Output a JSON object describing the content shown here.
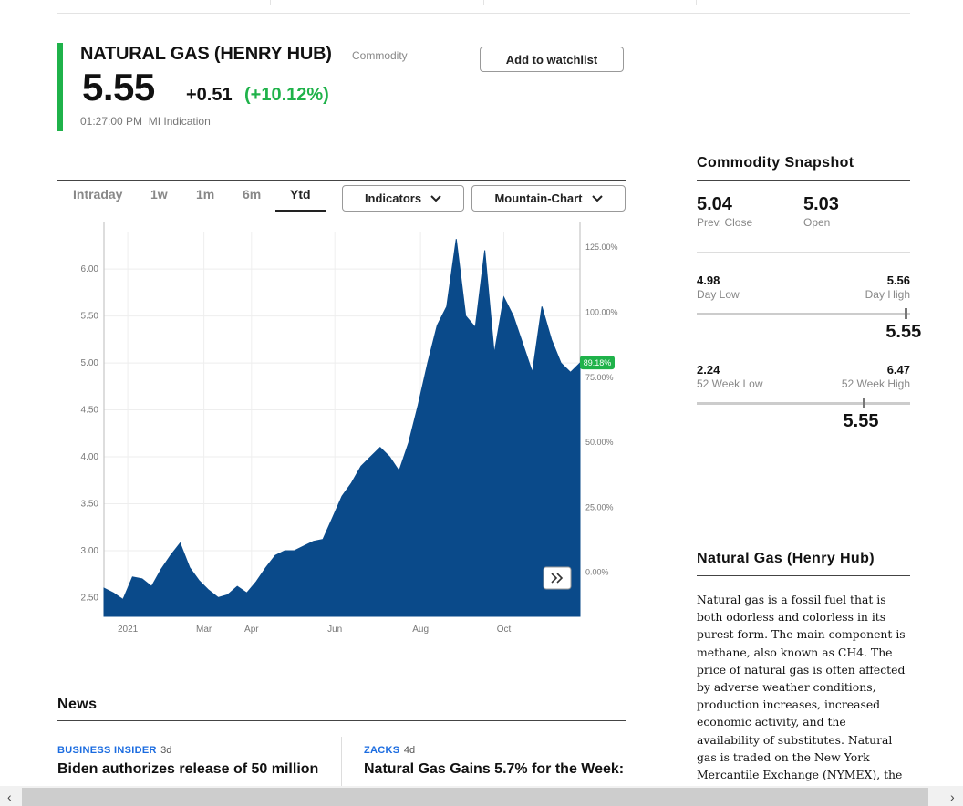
{
  "header": {
    "title": "NATURAL GAS (HENRY HUB)",
    "type_label": "Commodity",
    "price": "5.55",
    "change": "+0.51",
    "change_pct": "(+10.12%)",
    "quote_time": "01:27:00 PM",
    "quote_source": "MI Indication",
    "watchlist_button": "Add to watchlist"
  },
  "tabs": [
    {
      "label": "Intraday"
    },
    {
      "label": "1w"
    },
    {
      "label": "1m"
    },
    {
      "label": "6m"
    },
    {
      "label": "Ytd",
      "active": true
    }
  ],
  "dropdowns": {
    "indicators": "Indicators",
    "chart_type": "Mountain-Chart"
  },
  "chart_data": {
    "type": "area",
    "y_left_ticks": [
      "6.00",
      "5.50",
      "5.00",
      "4.50",
      "4.00",
      "3.50",
      "3.00",
      "2.50"
    ],
    "y_right_ticks": [
      "125.00%",
      "100.00%",
      "75.00%",
      "50.00%",
      "25.00%",
      "0.00%"
    ],
    "x_ticks": [
      "2021",
      "Mar",
      "Apr",
      "Jun",
      "Aug",
      "Oct"
    ],
    "current_badge": "89.18%",
    "ylim": [
      2.3,
      6.4
    ],
    "color": "#0a4a8a",
    "badge_color": "#1fb24a",
    "x": [
      0,
      2,
      4,
      6,
      8,
      10,
      12,
      14,
      16,
      18,
      20,
      22,
      24,
      26,
      28,
      30,
      32,
      34,
      36,
      38,
      40,
      42,
      44,
      46,
      48,
      50,
      52,
      54,
      56,
      58,
      60,
      62,
      64,
      66,
      68,
      70,
      72,
      74,
      76,
      78,
      80,
      82,
      84,
      86,
      88,
      90,
      92,
      94,
      96,
      98,
      100
    ],
    "values": [
      2.6,
      2.55,
      2.48,
      2.72,
      2.7,
      2.62,
      2.8,
      2.95,
      3.08,
      2.82,
      2.68,
      2.58,
      2.5,
      2.53,
      2.62,
      2.55,
      2.67,
      2.82,
      2.95,
      3.0,
      3.0,
      3.05,
      3.1,
      3.12,
      3.35,
      3.58,
      3.72,
      3.9,
      4.0,
      4.1,
      4.0,
      3.85,
      4.15,
      4.55,
      5.0,
      5.4,
      5.6,
      6.32,
      5.5,
      5.38,
      6.2,
      5.1,
      5.7,
      5.5,
      5.2,
      4.9,
      5.6,
      5.25,
      5.0,
      4.9,
      5.0
    ]
  },
  "snapshot": {
    "title": "Commodity Snapshot",
    "prev_close": "5.04",
    "prev_close_label": "Prev. Close",
    "open": "5.03",
    "open_label": "Open",
    "day_low": "4.98",
    "day_low_label": "Day Low",
    "day_high": "5.56",
    "day_high_label": "Day High",
    "day_current": "5.55",
    "day_position": 0.98,
    "week52_low": "2.24",
    "week52_low_label": "52 Week Low",
    "week52_high": "6.47",
    "week52_high_label": "52 Week High",
    "week52_current": "5.55",
    "week52_position": 0.78
  },
  "about": {
    "title": "Natural Gas (Henry Hub)",
    "text": "Natural gas is a fossil fuel that is both odorless and colorless in its purest form. The main component is methane, also known as CH4. The price of natural gas is often affected by adverse weather conditions, production increases, increased economic activity, and the availability of substitutes. Natural gas is traded on the New York Mercantile Exchange (NYMEX), the world's largest"
  },
  "news": {
    "title": "News",
    "items": [
      {
        "source": "BUSINESS INSIDER",
        "age": "3d",
        "headline": "Biden authorizes release of 50 million"
      },
      {
        "source": "ZACKS",
        "age": "4d",
        "headline": "Natural Gas Gains 5.7% for the Week:"
      }
    ]
  },
  "scroll": {
    "left": "‹",
    "right": "›"
  }
}
